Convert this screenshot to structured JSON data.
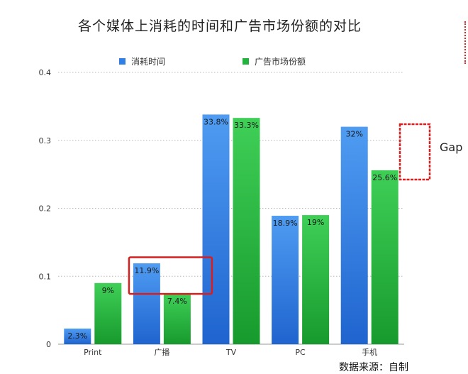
{
  "chart_data": {
    "type": "bar",
    "title": "各个媒体上消耗的时间和广告市场份额的对比",
    "categories": [
      "Print",
      "广播",
      "TV",
      "PC",
      "手机"
    ],
    "series": [
      {
        "name": "消耗时间",
        "values": [
          0.023,
          0.119,
          0.338,
          0.189,
          0.32
        ],
        "labels": [
          "2.3%",
          "11.9%",
          "33.8%",
          "18.9%",
          "32%"
        ]
      },
      {
        "name": "广告市场份额",
        "values": [
          0.09,
          0.074,
          0.333,
          0.19,
          0.256
        ],
        "labels": [
          "9%",
          "7.4%",
          "33.3%",
          "19%",
          "25.6%"
        ]
      }
    ],
    "ylim": [
      0,
      0.4
    ],
    "yticks": [
      "0",
      "0.1",
      "0.2",
      "0.3",
      "0.4"
    ],
    "grid": true,
    "legend_position": "top",
    "colors": {
      "series_1": "#2f7fe6",
      "series_2": "#22b33c",
      "highlight_box": "#d81e1e"
    },
    "annotations": {
      "gap_label": "Gap",
      "source": "数据来源：自制"
    }
  }
}
